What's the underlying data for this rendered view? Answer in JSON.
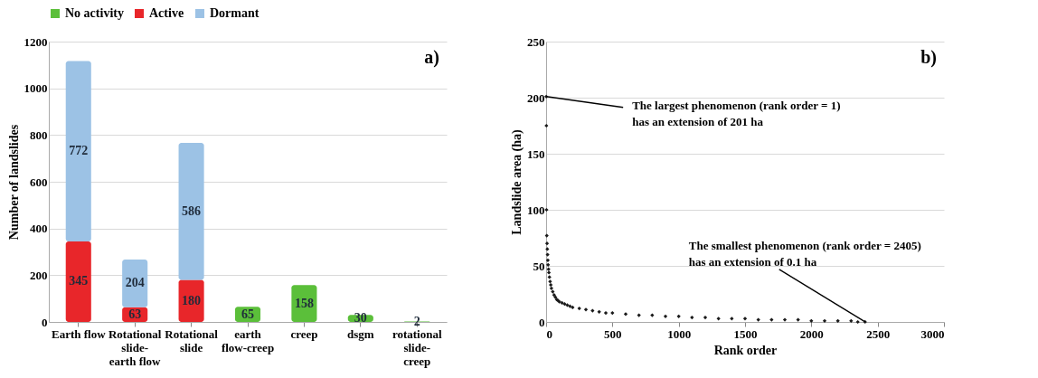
{
  "chart_data": [
    {
      "type": "bar",
      "stacked": true,
      "ylabel": "Number of landslides",
      "categories": [
        "Earth flow",
        "Rotational slide-earth flow",
        "Rotational slide",
        "earth flow-creep",
        "creep",
        "dsgm",
        "rotational slide-creep"
      ],
      "series": [
        {
          "name": "No activity",
          "color": "#5bbf3a",
          "values": [
            null,
            null,
            null,
            65,
            158,
            30,
            2
          ]
        },
        {
          "name": "Active",
          "color": "#e8262a",
          "values": [
            345,
            63,
            180,
            null,
            null,
            null,
            null
          ]
        },
        {
          "name": "Dormant",
          "color": "#9cc2e5",
          "values": [
            772,
            204,
            586,
            null,
            null,
            null,
            null
          ]
        }
      ],
      "ylim": [
        0,
        1200
      ],
      "yticks": [
        0,
        200,
        400,
        600,
        800,
        1000,
        1200
      ],
      "grid": "y",
      "legend": "top",
      "data_labels": true,
      "annotations": [
        "a)"
      ]
    },
    {
      "type": "scatter",
      "xlabel": "Rank order",
      "ylabel": "Landslide area (ha)",
      "marker": "diamond",
      "grid": "y",
      "x": [
        1,
        2,
        3,
        5,
        7,
        9,
        11,
        13,
        15,
        18,
        21,
        25,
        30,
        35,
        40,
        50,
        60,
        70,
        80,
        90,
        100,
        120,
        140,
        160,
        180,
        200,
        250,
        300,
        350,
        400,
        450,
        500,
        600,
        700,
        800,
        900,
        1000,
        1100,
        1200,
        1300,
        1400,
        1500,
        1600,
        1700,
        1800,
        1900,
        2000,
        2100,
        2200,
        2300,
        2350,
        2405
      ],
      "series": [
        {
          "color": "#1a1a1a",
          "values": [
            201,
            175,
            100,
            77,
            70,
            65,
            60,
            55,
            51,
            47,
            44,
            40,
            36,
            33,
            30,
            27,
            24,
            22,
            20,
            19,
            18,
            17,
            16,
            15,
            14,
            13,
            12,
            11,
            10,
            9,
            8,
            8,
            7,
            6,
            6,
            5,
            5,
            4,
            4,
            3,
            3,
            3,
            2,
            2,
            2,
            2,
            1,
            1,
            1,
            1,
            0,
            0.1
          ]
        }
      ],
      "xlim": [
        0,
        3000
      ],
      "xticks": [
        0,
        500,
        1000,
        1500,
        2000,
        2500,
        3000
      ],
      "ylim": [
        0,
        250
      ],
      "yticks": [
        0,
        50,
        100,
        150,
        200,
        250
      ],
      "annotations": [
        "b)",
        {
          "text": "The largest phenomenon (rank order = 1)\nhas an extension of 201 ha",
          "x": 1,
          "y": 201
        },
        {
          "text": "The smallest phenomenon (rank order = 2405)\nhas an extension of  0.1  ha",
          "x": 2405,
          "y": 0.1
        }
      ]
    }
  ]
}
